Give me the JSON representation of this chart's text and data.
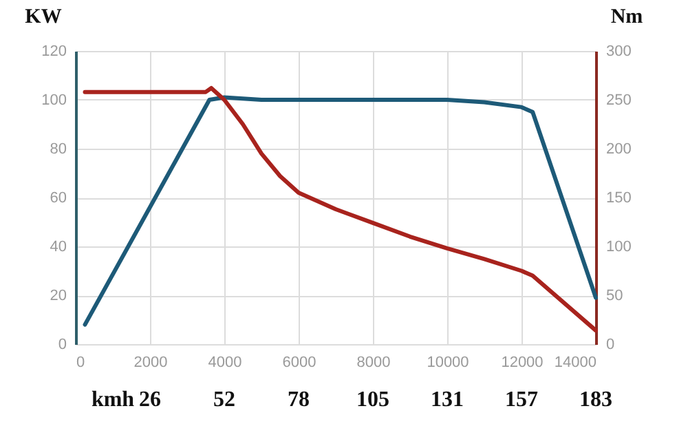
{
  "chart_data": {
    "type": "line",
    "ylabel": "KW",
    "y2label": "Nm",
    "xlim": [
      0,
      14000
    ],
    "xticks": [
      0,
      2000,
      4000,
      6000,
      8000,
      10000,
      12000,
      14000
    ],
    "ylim": [
      0,
      120
    ],
    "yticks": [
      0,
      20,
      40,
      60,
      80,
      100,
      120
    ],
    "y2lim": [
      0,
      300
    ],
    "y2ticks": [
      0,
      50,
      100,
      150,
      200,
      250,
      300
    ],
    "grid": true,
    "series": [
      {
        "color": "#1d5a78",
        "x": [
          250,
          3600,
          4000,
          5000,
          6000,
          8000,
          10000,
          11000,
          12000,
          12300,
          14000
        ],
        "values": [
          8,
          100,
          101,
          100,
          100,
          100,
          100,
          99,
          97,
          95,
          19
        ]
      },
      {
        "color": "#a8231d",
        "axis": "y2",
        "x": [
          250,
          3500,
          3650,
          4000,
          4500,
          5000,
          5500,
          6000,
          7000,
          8000,
          9000,
          10000,
          11000,
          12000,
          12300,
          14000
        ],
        "values": [
          258,
          258,
          262,
          250,
          225,
          195,
          172,
          155,
          138,
          124,
          110,
          98,
          87,
          75,
          70,
          14
        ]
      }
    ],
    "annotations": [
      "kmh",
      "26",
      "52",
      "78",
      "105",
      "131",
      "157",
      "183"
    ]
  }
}
